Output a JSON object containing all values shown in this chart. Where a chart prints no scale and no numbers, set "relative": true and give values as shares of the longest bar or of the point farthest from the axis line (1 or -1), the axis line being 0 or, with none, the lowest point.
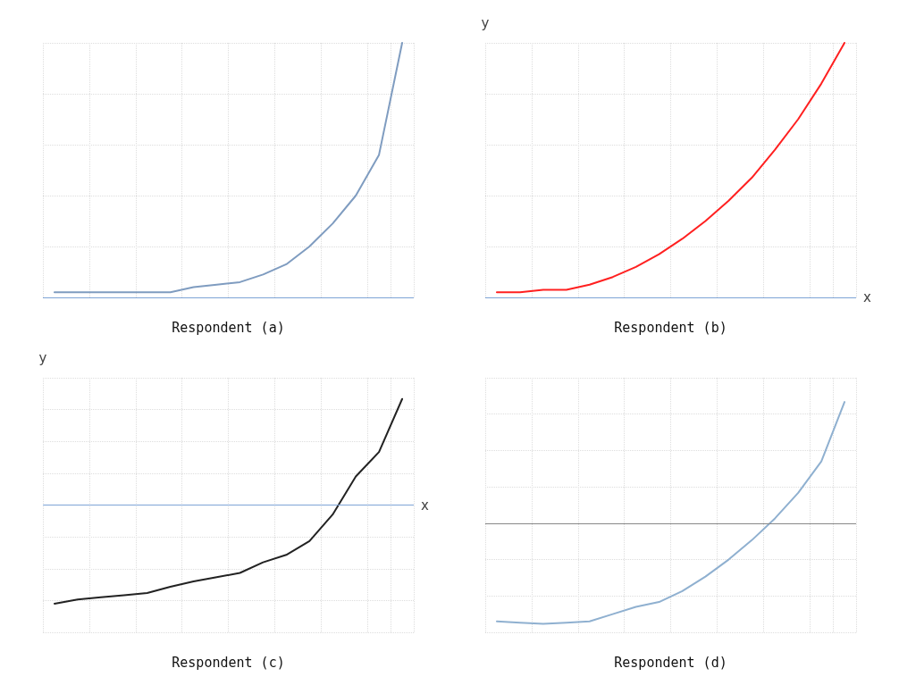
{
  "chart_data": [
    {
      "type": "line",
      "title": "Respondent (a)",
      "relative": true,
      "grid": true,
      "marker": "none",
      "categories": [
        null,
        null,
        null,
        null,
        null,
        null,
        null,
        null,
        null,
        null,
        null,
        null,
        null,
        null,
        null,
        null
      ],
      "ref_lines": [
        {
          "axis": "y",
          "value": 0,
          "color": "#7ea4d6"
        }
      ],
      "series": [
        {
          "color": "#7f9cc0",
          "values": [
            0.02,
            0.02,
            0.02,
            0.02,
            0.02,
            0.02,
            0.04,
            0.05,
            0.06,
            0.09,
            0.13,
            0.2,
            0.29,
            0.4,
            0.56,
            1
          ]
        }
      ]
    },
    {
      "type": "line",
      "title": "Respondent (b)",
      "xlabel": "x",
      "ylabel": "y",
      "relative": true,
      "grid": true,
      "marker": "none",
      "categories": [
        null,
        null,
        null,
        null,
        null,
        null,
        null,
        null,
        null,
        null,
        null,
        null,
        null,
        null,
        null,
        null
      ],
      "ref_lines": [
        {
          "axis": "y",
          "value": 0,
          "color": "#7ea4d6"
        }
      ],
      "series": [
        {
          "color": "#ff2020",
          "values": [
            0.02,
            0.02,
            0.03,
            0.03,
            0.05,
            0.08,
            0.12,
            0.17,
            0.23,
            0.3,
            0.38,
            0.47,
            0.58,
            0.7,
            0.84,
            1
          ]
        }
      ]
    },
    {
      "type": "line",
      "title": "Respondent (c)",
      "xlabel": "x",
      "ylabel": "y",
      "relative": true,
      "grid": true,
      "marker": "none",
      "categories": [
        null,
        null,
        null,
        null,
        null,
        null,
        null,
        null,
        null,
        null,
        null,
        null,
        null,
        null,
        null,
        null
      ],
      "ref_lines": [
        {
          "axis": "y",
          "value": 0,
          "color": "#7ea4d6"
        }
      ],
      "series": [
        {
          "color": "#222222",
          "values": [
            -0.93,
            -0.89,
            -0.87,
            -0.85,
            -0.83,
            -0.77,
            -0.72,
            -0.68,
            -0.64,
            -0.54,
            -0.47,
            -0.34,
            -0.09,
            0.27,
            0.5,
            1
          ]
        }
      ]
    },
    {
      "type": "line",
      "title": "Respondent (d)",
      "relative": true,
      "grid": true,
      "marker": "none",
      "categories": [
        null,
        null,
        null,
        null,
        null,
        null,
        null,
        null,
        null,
        null,
        null,
        null,
        null,
        null,
        null,
        null
      ],
      "ref_lines": [
        {
          "axis": "y",
          "value": 0,
          "color": "#888888"
        }
      ],
      "series": [
        {
          "color": "#8fb0d0",
          "values": [
            -0.81,
            -0.82,
            -0.83,
            -0.82,
            -0.81,
            -0.75,
            -0.69,
            -0.65,
            -0.56,
            -0.44,
            -0.3,
            -0.14,
            0.04,
            0.25,
            0.51,
            1
          ]
        }
      ]
    }
  ]
}
